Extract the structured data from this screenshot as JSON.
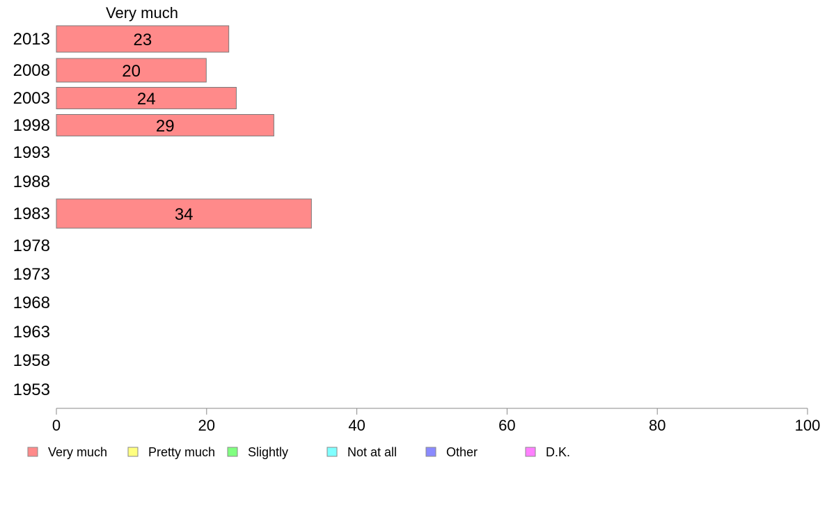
{
  "chart_data": {
    "type": "bar",
    "orientation": "horizontal",
    "stacked": true,
    "column_header": "Very much",
    "categories": [
      "2013",
      "2008",
      "2003",
      "1998",
      "1993",
      "1988",
      "1983",
      "1978",
      "1973",
      "1968",
      "1963",
      "1958",
      "1953"
    ],
    "series": [
      {
        "name": "Very much",
        "color": "#ff8a8a",
        "values": [
          23,
          20,
          24,
          29,
          null,
          null,
          34,
          null,
          null,
          null,
          null,
          null,
          null
        ],
        "labels": [
          "23",
          "20",
          "24",
          "29",
          "",
          "",
          "34",
          "",
          "",
          "",
          "",
          "",
          ""
        ]
      }
    ],
    "legend": [
      {
        "name": "Very much",
        "color": "#ff8a8a"
      },
      {
        "name": "Pretty much",
        "color": "#ffff80"
      },
      {
        "name": "Slightly",
        "color": "#80ff80"
      },
      {
        "name": "Not at all",
        "color": "#80ffff"
      },
      {
        "name": "Other",
        "color": "#8a8aff"
      },
      {
        "name": "D.K.",
        "color": "#ff80ff"
      }
    ],
    "legend_position": "bottom",
    "xlim": [
      0,
      100
    ],
    "xticks": [
      0,
      20,
      40,
      60,
      80,
      100
    ],
    "xtick_labels": [
      "0",
      "20",
      "40",
      "60",
      "80",
      "100"
    ],
    "grid": false
  }
}
